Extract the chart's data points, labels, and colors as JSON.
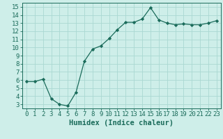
{
  "x": [
    0,
    1,
    2,
    3,
    4,
    5,
    6,
    7,
    8,
    9,
    10,
    11,
    12,
    13,
    14,
    15,
    16,
    17,
    18,
    19,
    20,
    21,
    22,
    23
  ],
  "y": [
    5.8,
    5.8,
    6.1,
    3.7,
    3.0,
    2.8,
    4.5,
    8.3,
    9.8,
    10.2,
    11.1,
    12.2,
    13.1,
    13.1,
    13.5,
    14.9,
    13.4,
    13.0,
    12.8,
    12.9,
    12.8,
    12.8,
    13.0,
    13.3
  ],
  "line_color": "#1a6b5a",
  "marker": "D",
  "marker_size": 2.2,
  "background_color": "#ceeee9",
  "grid_color": "#aad8d2",
  "xlabel": "Humidex (Indice chaleur)",
  "xlim": [
    -0.5,
    23.5
  ],
  "ylim": [
    2.5,
    15.5
  ],
  "yticks": [
    3,
    4,
    5,
    6,
    7,
    8,
    9,
    10,
    11,
    12,
    13,
    14,
    15
  ],
  "xticks": [
    0,
    1,
    2,
    3,
    4,
    5,
    6,
    7,
    8,
    9,
    10,
    11,
    12,
    13,
    14,
    15,
    16,
    17,
    18,
    19,
    20,
    21,
    22,
    23
  ],
  "tick_color": "#1a6b5a",
  "label_color": "#1a6b5a",
  "tick_fontsize": 6.5,
  "xlabel_fontsize": 7.5,
  "linewidth": 0.9
}
